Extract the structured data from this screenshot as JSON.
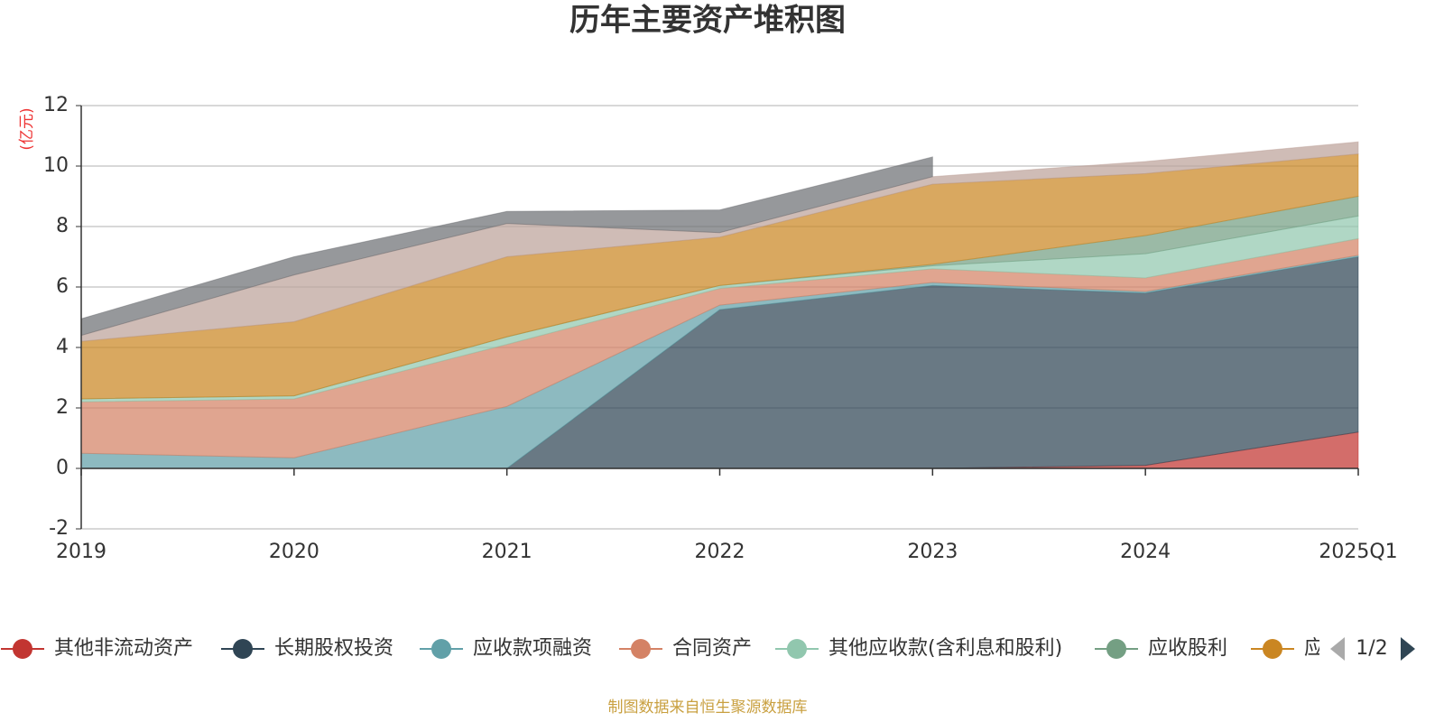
{
  "chart_data": {
    "type": "stacked_area",
    "title": "历年主要资产堆积图",
    "y_label": "(亿元)",
    "source": "制图数据来自恒生聚源数据库",
    "legend_page": "1/2",
    "categories": [
      "2019",
      "2020",
      "2021",
      "2022",
      "2023",
      "2024",
      "2025Q1"
    ],
    "ylim": [
      -2,
      12
    ],
    "yticks": [
      -2,
      0,
      2,
      4,
      6,
      8,
      10,
      12
    ],
    "grid": true,
    "series": [
      {
        "name": "其他非流动资产",
        "color": "#c23531",
        "values": [
          0,
          0,
          0,
          0,
          0,
          0.1,
          1.2
        ]
      },
      {
        "name": "长期股权投资",
        "color": "#2f4554",
        "values": [
          0,
          0,
          0,
          5.25,
          6.05,
          5.7,
          5.8
        ]
      },
      {
        "name": "应收款项融资",
        "color": "#61a0a8",
        "values": [
          0.5,
          0.35,
          2.05,
          0.15,
          0.1,
          0.05,
          0.05
        ]
      },
      {
        "name": "合同资产",
        "color": "#d48265",
        "values": [
          1.7,
          1.95,
          2.05,
          0.55,
          0.45,
          0.45,
          0.55
        ]
      },
      {
        "name": "其他应收款(含利息和股利)",
        "color": "#91c7ae",
        "values": [
          0.1,
          0.1,
          0.25,
          0.1,
          0.1,
          0.8,
          0.75
        ]
      },
      {
        "name": "应收股利",
        "color": "#749f83",
        "values": [
          0,
          0,
          0,
          0,
          0.05,
          0.6,
          0.65
        ]
      },
      {
        "name": "应收账款",
        "color": "#ca8622",
        "values": [
          1.9,
          2.45,
          2.65,
          1.6,
          2.65,
          2.05,
          1.4
        ]
      },
      {
        "color": "#bda29a",
        "values": [
          0.2,
          1.55,
          1.1,
          0.15,
          0.25,
          0.4,
          0.4
        ]
      },
      {
        "color": "#6e7074",
        "values": [
          0.55,
          0.6,
          0.4,
          0.75,
          0.65,
          null,
          0
        ]
      }
    ]
  }
}
